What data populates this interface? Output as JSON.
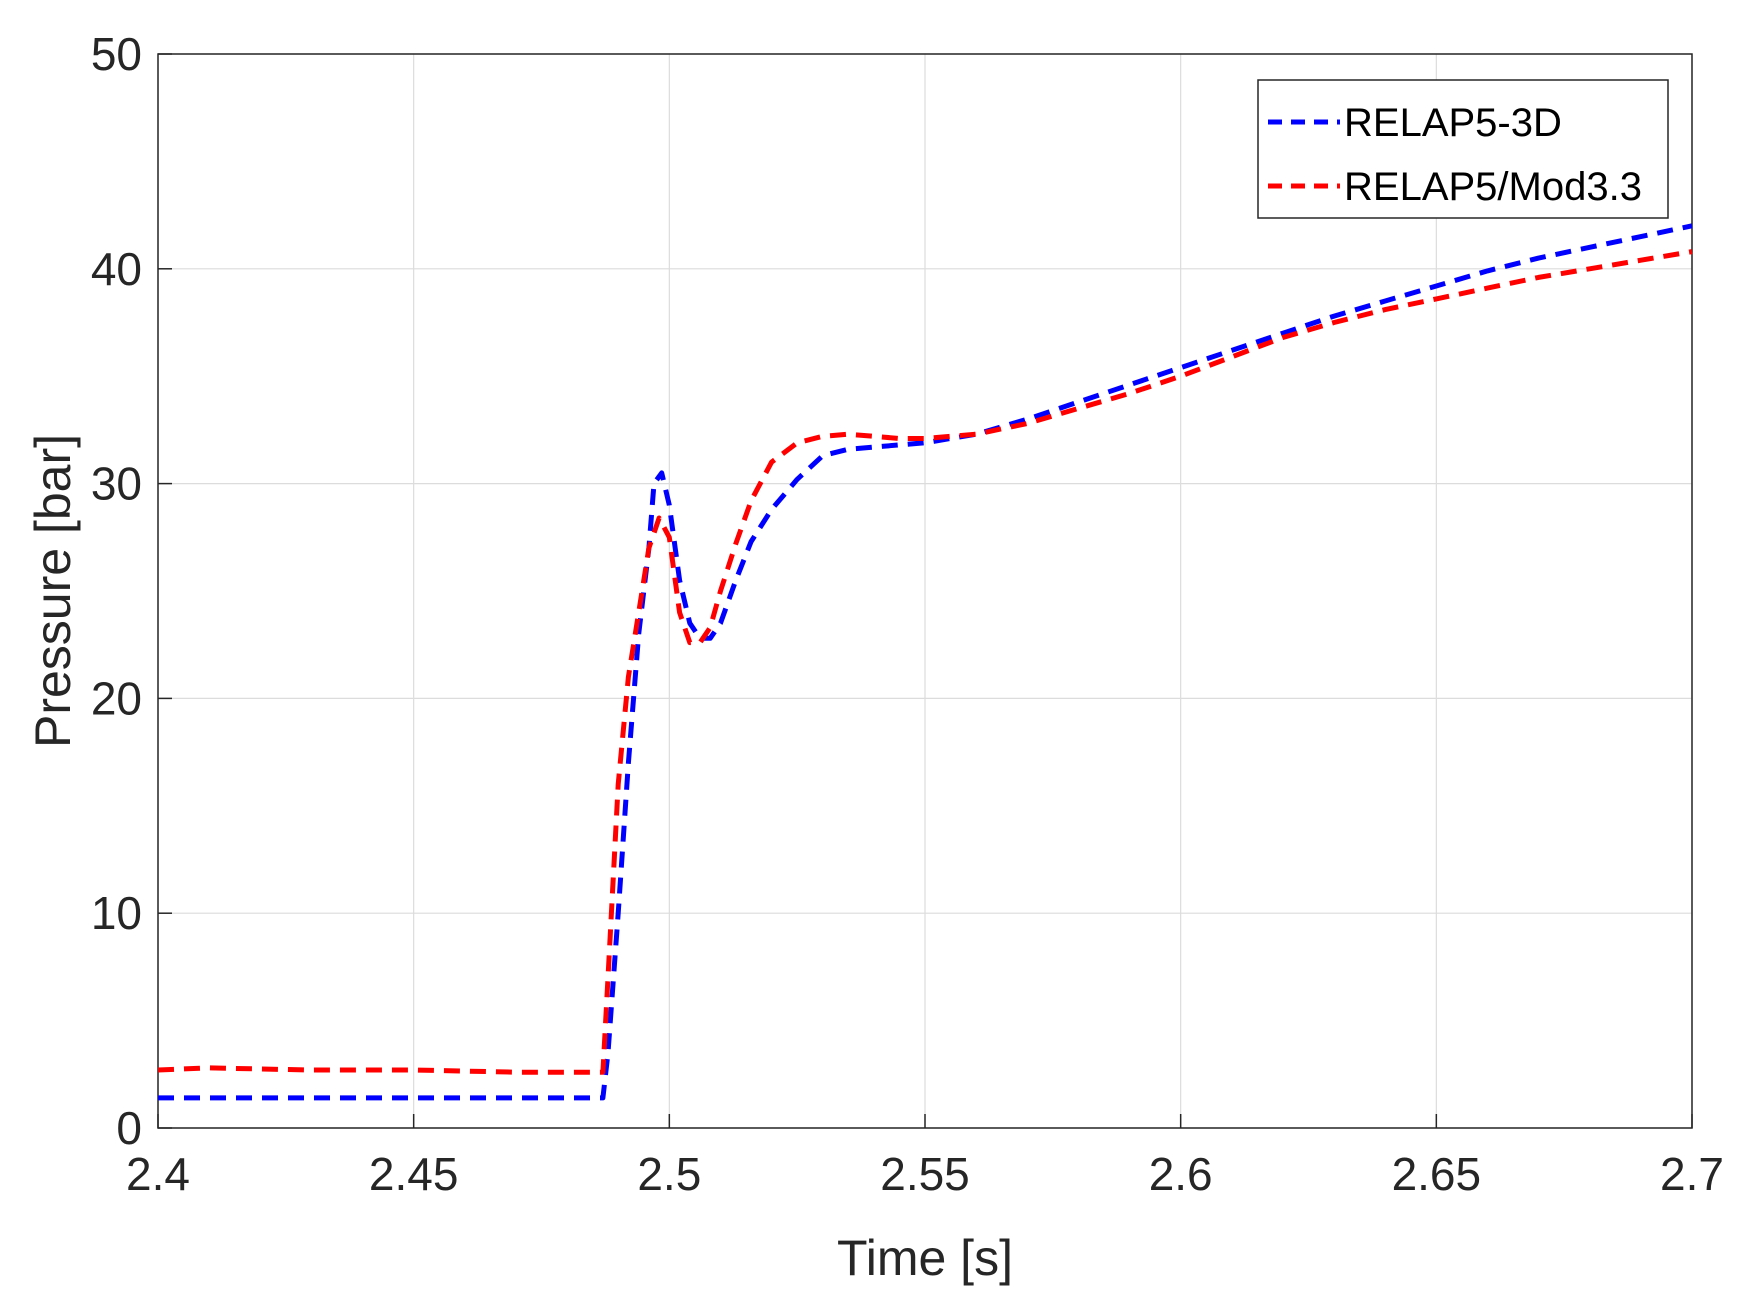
{
  "chart_data": {
    "type": "line",
    "title": "",
    "xlabel": "Time [s]",
    "ylabel": "Pressure [bar]",
    "xlim": [
      2.4,
      2.7
    ],
    "ylim": [
      0,
      50
    ],
    "xticks": [
      2.4,
      2.45,
      2.5,
      2.55,
      2.6,
      2.65,
      2.7
    ],
    "xtick_labels": [
      "2.4",
      "2.45",
      "2.5",
      "2.55",
      "2.6",
      "2.65",
      "2.7"
    ],
    "yticks": [
      0,
      10,
      20,
      30,
      40,
      50
    ],
    "ytick_labels": [
      "0",
      "10",
      "20",
      "30",
      "40",
      "50"
    ],
    "grid": true,
    "legend_position": "top-right",
    "series": [
      {
        "name": "RELAP5-3D",
        "color": "#0000ff",
        "dash": "dashed",
        "x": [
          2.4,
          2.45,
          2.487,
          2.488,
          2.49,
          2.492,
          2.494,
          2.496,
          2.497,
          2.4985,
          2.5,
          2.502,
          2.504,
          2.506,
          2.508,
          2.51,
          2.513,
          2.516,
          2.52,
          2.525,
          2.53,
          2.535,
          2.54,
          2.545,
          2.55,
          2.555,
          2.56,
          2.57,
          2.58,
          2.59,
          2.6,
          2.61,
          2.62,
          2.63,
          2.64,
          2.65,
          2.66,
          2.67,
          2.68,
          2.69,
          2.7
        ],
        "y": [
          1.4,
          1.4,
          1.4,
          3.5,
          10,
          17,
          23,
          27,
          30,
          30.5,
          29,
          25.5,
          23.5,
          22.8,
          22.8,
          23.5,
          25.5,
          27.3,
          28.8,
          30.2,
          31.3,
          31.6,
          31.7,
          31.8,
          31.9,
          32.1,
          32.3,
          33.0,
          33.8,
          34.6,
          35.4,
          36.2,
          37.0,
          37.8,
          38.5,
          39.2,
          39.9,
          40.5,
          41.0,
          41.5,
          42.0
        ]
      },
      {
        "name": "RELAP5/Mod3.3",
        "color": "#ff0000",
        "dash": "dashed",
        "x": [
          2.4,
          2.41,
          2.43,
          2.45,
          2.47,
          2.487,
          2.488,
          2.49,
          2.492,
          2.494,
          2.496,
          2.498,
          2.5,
          2.502,
          2.504,
          2.506,
          2.508,
          2.51,
          2.513,
          2.516,
          2.52,
          2.525,
          2.53,
          2.535,
          2.54,
          2.545,
          2.55,
          2.555,
          2.56,
          2.57,
          2.58,
          2.59,
          2.6,
          2.61,
          2.62,
          2.63,
          2.64,
          2.65,
          2.66,
          2.67,
          2.68,
          2.69,
          2.7
        ],
        "y": [
          2.7,
          2.8,
          2.7,
          2.7,
          2.6,
          2.6,
          7,
          16,
          21,
          24,
          27,
          28.4,
          27.5,
          24,
          22.6,
          22.6,
          23.3,
          25,
          27.2,
          29.2,
          31.0,
          31.9,
          32.2,
          32.3,
          32.2,
          32.1,
          32.1,
          32.2,
          32.3,
          32.8,
          33.5,
          34.2,
          35.0,
          35.9,
          36.8,
          37.5,
          38.1,
          38.6,
          39.1,
          39.6,
          40.0,
          40.4,
          40.8
        ]
      }
    ]
  }
}
